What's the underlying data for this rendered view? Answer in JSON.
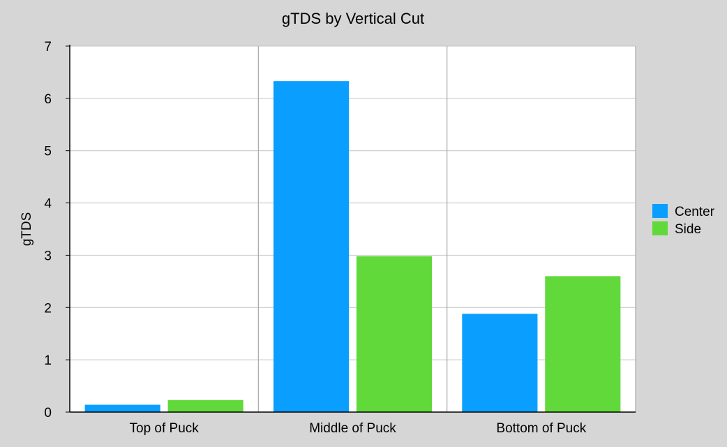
{
  "chart_data": {
    "type": "bar",
    "title": "gTDS by Vertical Cut",
    "xlabel": "",
    "ylabel": "gTDS",
    "ylim": [
      0,
      7
    ],
    "yticks": [
      "0",
      "1",
      "2",
      "3",
      "4",
      "5",
      "6",
      "7"
    ],
    "categories": [
      "Top of Puck",
      "Middle of Puck",
      "Bottom of Puck"
    ],
    "series": [
      {
        "name": "Center",
        "color": "#0a9fff",
        "values": [
          0.14,
          6.33,
          1.88
        ]
      },
      {
        "name": "Side",
        "color": "#61d93b",
        "values": [
          0.23,
          2.98,
          2.6
        ]
      }
    ],
    "grid": true,
    "legend_position": "right"
  }
}
